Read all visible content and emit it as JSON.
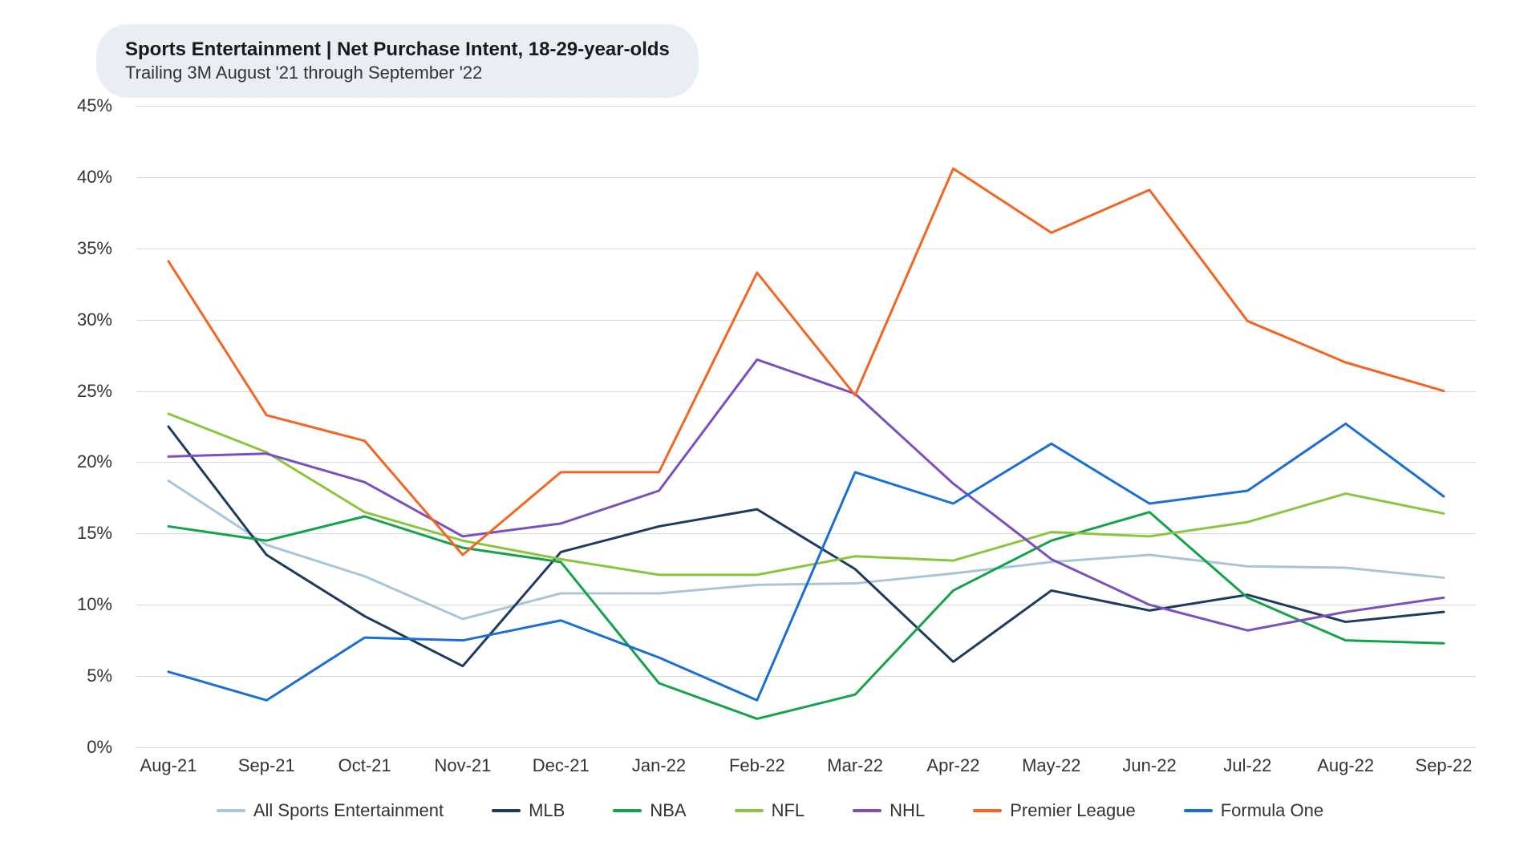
{
  "chart": {
    "type": "line",
    "title": "Sports Entertainment | Net Purchase Intent, 18-29-year-olds",
    "subtitle": "Trailing 3M August '21 through September '22",
    "background_color": "#ffffff",
    "title_box_bg": "#e8eef3",
    "title_fontsize": 24,
    "subtitle_fontsize": 22,
    "axis_label_fontsize": 22,
    "grid_color": "#d9d9d9",
    "line_width": 3,
    "ylim": [
      0,
      45
    ],
    "ytick_step": 5,
    "ytick_suffix": "%",
    "categories": [
      "Aug-21",
      "Sep-21",
      "Oct-21",
      "Nov-21",
      "Dec-21",
      "Jan-22",
      "Feb-22",
      "Mar-22",
      "Apr-22",
      "May-22",
      "Jun-22",
      "Jul-22",
      "Aug-22",
      "Sep-22"
    ],
    "series": [
      {
        "name": "All Sports Entertainment",
        "color": "#a9c5d8",
        "values": [
          18.7,
          14.2,
          12.0,
          9.0,
          10.8,
          10.8,
          11.4,
          11.5,
          12.2,
          13.0,
          13.5,
          12.7,
          12.6,
          11.9
        ]
      },
      {
        "name": "MLB",
        "color": "#1e3a5f",
        "values": [
          22.5,
          13.5,
          9.2,
          5.7,
          13.7,
          15.5,
          16.7,
          12.5,
          6.0,
          11.0,
          9.6,
          10.7,
          8.8,
          9.5
        ]
      },
      {
        "name": "NBA",
        "color": "#15a24a",
        "values": [
          15.5,
          14.5,
          16.2,
          14.0,
          13.0,
          4.5,
          2.0,
          3.7,
          11.0,
          14.5,
          16.5,
          10.5,
          7.5,
          7.3
        ]
      },
      {
        "name": "NFL",
        "color": "#8bc540",
        "values": [
          23.4,
          20.7,
          16.5,
          14.5,
          13.2,
          12.1,
          12.1,
          13.4,
          13.1,
          15.1,
          14.8,
          15.8,
          17.8,
          16.4
        ]
      },
      {
        "name": "NHL",
        "color": "#7b4fbd",
        "values": [
          20.4,
          20.6,
          18.6,
          14.8,
          15.7,
          18.0,
          27.2,
          24.8,
          18.5,
          13.2,
          10.0,
          8.2,
          9.5,
          10.5
        ]
      },
      {
        "name": "Premier League",
        "color": "#f26522",
        "values": [
          34.1,
          23.3,
          21.5,
          13.5,
          19.3,
          19.3,
          33.3,
          24.7,
          40.6,
          36.1,
          39.1,
          29.9,
          27.0,
          25.0
        ]
      },
      {
        "name": "Formula One",
        "color": "#1b6ed6",
        "values": [
          5.3,
          3.3,
          7.7,
          7.5,
          8.9,
          6.3,
          3.3,
          19.3,
          17.1,
          21.3,
          17.1,
          18.0,
          22.7,
          17.6
        ]
      }
    ]
  }
}
